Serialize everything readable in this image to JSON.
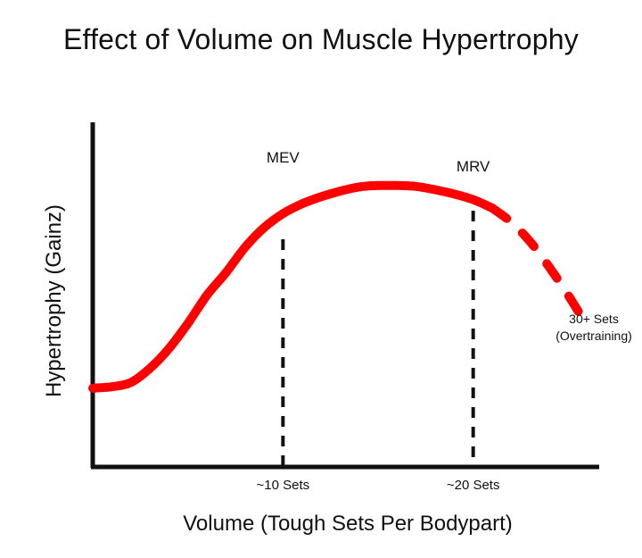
{
  "chart_data": {
    "type": "line",
    "title": "Effect of Volume on Muscle Hypertrophy",
    "xlabel": "Volume (Tough Sets Per Bodypart)",
    "ylabel": "Hypertrophy (Gainz)",
    "grid": false,
    "legend": "none",
    "series_color": "#ff0000",
    "x_ticks": [
      {
        "value": 10,
        "label": "~10 Sets"
      },
      {
        "value": 20,
        "label": "~20 Sets"
      }
    ],
    "reference_lines": [
      {
        "x": 10,
        "label": "MEV"
      },
      {
        "x": 20,
        "label": "MRV"
      }
    ],
    "annotations": [
      {
        "lines": [
          "30+ Sets",
          "(Overtraining)"
        ]
      }
    ],
    "curve_solid": [
      [
        0,
        0.28
      ],
      [
        1,
        0.285
      ],
      [
        2,
        0.3
      ],
      [
        3,
        0.35
      ],
      [
        4,
        0.42
      ],
      [
        5,
        0.51
      ],
      [
        6,
        0.61
      ],
      [
        7,
        0.69
      ],
      [
        8,
        0.78
      ],
      [
        9,
        0.85
      ],
      [
        10,
        0.9
      ],
      [
        11,
        0.935
      ],
      [
        12,
        0.96
      ],
      [
        13,
        0.98
      ],
      [
        14,
        0.995
      ],
      [
        15,
        1.0
      ],
      [
        16,
        1.0
      ],
      [
        17,
        0.997
      ],
      [
        18,
        0.985
      ],
      [
        19,
        0.97
      ],
      [
        20,
        0.95
      ],
      [
        21,
        0.92
      ]
    ],
    "curve_dashed": [
      [
        21,
        0.92
      ],
      [
        22,
        0.87
      ],
      [
        23,
        0.8
      ],
      [
        24,
        0.71
      ],
      [
        25,
        0.61
      ],
      [
        26,
        0.5
      ]
    ],
    "xlim": [
      0,
      27
    ],
    "ylim": [
      0,
      1.12
    ]
  }
}
